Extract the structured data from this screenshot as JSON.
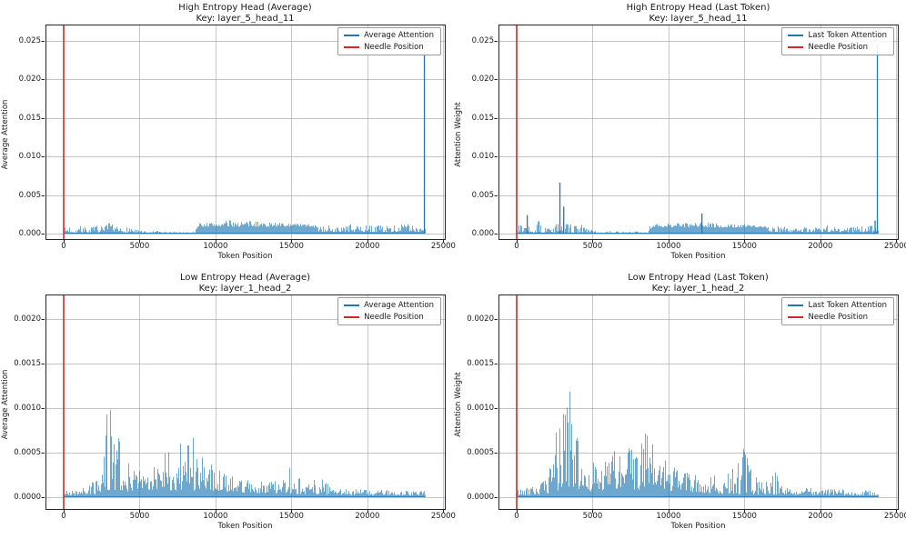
{
  "figure": {
    "background": "#ffffff",
    "grid_color": "#b0b0b0",
    "spine_color": "#262626",
    "text_color": "#1a1a1a",
    "series_blue": "#1f77b4",
    "needle_red": "#d62728"
  },
  "chart_data": [
    {
      "type": "line",
      "title": "High Entropy Head (Average)",
      "subtitle": "Key: layer_5_head_11",
      "xlabel": "Token Position",
      "ylabel": "Average Attention",
      "legend": [
        {
          "label": "Average Attention",
          "color": "#1f77b4"
        },
        {
          "label": "Needle Position",
          "color": "#d62728"
        }
      ],
      "xlim": [
        -1195,
        25095
      ],
      "ylim": [
        -0.0007,
        0.0271
      ],
      "xticks": [
        0,
        5000,
        10000,
        15000,
        20000,
        25000
      ],
      "xtick_labels": [
        "0",
        "5000",
        "10000",
        "15000",
        "20000",
        "25000"
      ],
      "yticks": [
        0,
        0.005,
        0.01,
        0.015,
        0.02,
        0.025
      ],
      "ytick_labels": [
        "0.000",
        "0.005",
        "0.010",
        "0.015",
        "0.020",
        "0.025"
      ],
      "needle_x": 0,
      "line_color": "#1f77b4",
      "needle_color": "#d62728",
      "seed": 7,
      "x_max_data": 23800,
      "envelope": [
        [
          0,
          0.0007
        ],
        [
          300,
          0.0012
        ],
        [
          700,
          0.0009
        ],
        [
          1100,
          0.0011
        ],
        [
          1600,
          0.0008
        ],
        [
          2100,
          0.0011
        ],
        [
          2600,
          0.0009
        ],
        [
          3000,
          0.0014
        ],
        [
          3400,
          0.0009
        ],
        [
          3900,
          0.0008
        ],
        [
          4300,
          0.0011
        ],
        [
          4700,
          0.0007
        ],
        [
          5000,
          0.0004
        ],
        [
          5600,
          0.00025
        ],
        [
          6300,
          0.0004
        ],
        [
          7000,
          0.00022
        ],
        [
          7700,
          0.00035
        ],
        [
          8300,
          0.0002
        ],
        [
          8600,
          0.0003
        ],
        [
          8700,
          0.0013
        ],
        [
          9500,
          0.0015
        ],
        [
          10300,
          0.0016
        ],
        [
          11100,
          0.0018
        ],
        [
          11900,
          0.0017
        ],
        [
          12700,
          0.0016
        ],
        [
          13500,
          0.0015
        ],
        [
          14300,
          0.0014
        ],
        [
          15100,
          0.0013
        ],
        [
          15900,
          0.0013
        ],
        [
          16500,
          0.0012
        ],
        [
          16900,
          0.0009
        ],
        [
          17400,
          0.0012
        ],
        [
          17900,
          0.0008
        ],
        [
          18400,
          0.0011
        ],
        [
          18900,
          0.0013
        ],
        [
          19400,
          0.0009
        ],
        [
          19900,
          0.0012
        ],
        [
          20400,
          0.001
        ],
        [
          20900,
          0.0013
        ],
        [
          21400,
          0.0009
        ],
        [
          21900,
          0.0012
        ],
        [
          22400,
          0.0014
        ],
        [
          22900,
          0.0011
        ],
        [
          23400,
          0.0013
        ],
        [
          23800,
          0.0011
        ]
      ],
      "floor": [
        [
          0,
          0.0001
        ],
        [
          4900,
          0.0001
        ],
        [
          5100,
          4e-05
        ],
        [
          8600,
          4e-05
        ],
        [
          8800,
          0.0009
        ],
        [
          16400,
          0.0009
        ],
        [
          16800,
          0.00022
        ],
        [
          23800,
          0.00022
        ]
      ],
      "spikes": [
        [
          23750,
          0.0235
        ]
      ]
    },
    {
      "type": "line",
      "title": "High Entropy Head (Last Token)",
      "subtitle": "Key: layer_5_head_11",
      "xlabel": "Token Position",
      "ylabel": "Attention Weight",
      "legend": [
        {
          "label": "Last Token Attention",
          "color": "#1f77b4"
        },
        {
          "label": "Needle Position",
          "color": "#d62728"
        }
      ],
      "xlim": [
        -1195,
        25095
      ],
      "ylim": [
        -0.0007,
        0.0271
      ],
      "xticks": [
        0,
        5000,
        10000,
        15000,
        20000,
        25000
      ],
      "xtick_labels": [
        "0",
        "5000",
        "10000",
        "15000",
        "20000",
        "25000"
      ],
      "yticks": [
        0,
        0.005,
        0.01,
        0.015,
        0.02,
        0.025
      ],
      "ytick_labels": [
        "0.000",
        "0.005",
        "0.010",
        "0.015",
        "0.020",
        "0.025"
      ],
      "needle_x": 0,
      "line_color": "#1f77b4",
      "needle_color": "#d62728",
      "seed": 13,
      "x_max_data": 23800,
      "envelope": [
        [
          0,
          0.001
        ],
        [
          400,
          0.0016
        ],
        [
          800,
          0.001
        ],
        [
          1200,
          0.0014
        ],
        [
          1700,
          0.0009
        ],
        [
          2200,
          0.0012
        ],
        [
          2700,
          0.0014
        ],
        [
          3000,
          0.002
        ],
        [
          3300,
          0.0015
        ],
        [
          3700,
          0.001
        ],
        [
          4200,
          0.0012
        ],
        [
          4700,
          0.0008
        ],
        [
          5000,
          0.0004
        ],
        [
          5600,
          0.00025
        ],
        [
          6300,
          0.0004
        ],
        [
          7000,
          0.0002
        ],
        [
          7700,
          0.00035
        ],
        [
          8300,
          0.0002
        ],
        [
          8600,
          0.0003
        ],
        [
          8800,
          0.0012
        ],
        [
          9600,
          0.0013
        ],
        [
          10400,
          0.0014
        ],
        [
          11200,
          0.0014
        ],
        [
          12000,
          0.0015
        ],
        [
          12800,
          0.0014
        ],
        [
          13600,
          0.0013
        ],
        [
          14400,
          0.0012
        ],
        [
          15200,
          0.0012
        ],
        [
          16000,
          0.0011
        ],
        [
          16400,
          0.0011
        ],
        [
          16800,
          0.0008
        ],
        [
          17400,
          0.001
        ],
        [
          18000,
          0.0008
        ],
        [
          18600,
          0.001
        ],
        [
          19200,
          0.0008
        ],
        [
          19800,
          0.0009
        ],
        [
          20400,
          0.0011
        ],
        [
          21000,
          0.0008
        ],
        [
          21600,
          0.001
        ],
        [
          22200,
          0.0012
        ],
        [
          22800,
          0.0009
        ],
        [
          23400,
          0.0011
        ],
        [
          23800,
          0.0014
        ]
      ],
      "floor": [
        [
          0,
          0.00012
        ],
        [
          4900,
          0.00012
        ],
        [
          5100,
          3e-05
        ],
        [
          8700,
          3e-05
        ],
        [
          8900,
          0.0008
        ],
        [
          16300,
          0.0008
        ],
        [
          16700,
          0.0002
        ],
        [
          23800,
          0.0002
        ]
      ],
      "spikes": [
        [
          700,
          0.0024
        ],
        [
          1450,
          0.0016
        ],
        [
          2850,
          0.0066
        ],
        [
          3100,
          0.0035
        ],
        [
          12200,
          0.0026
        ],
        [
          23600,
          0.0017
        ],
        [
          23750,
          0.0245
        ]
      ]
    },
    {
      "type": "line",
      "title": "Low Entropy Head (Average)",
      "subtitle": "Key: layer_1_head_2",
      "xlabel": "Token Position",
      "ylabel": "Average Attention",
      "legend": [
        {
          "label": "Average Attention",
          "color": "#1f77b4"
        },
        {
          "label": "Needle Position",
          "color": "#d62728"
        }
      ],
      "xlim": [
        -1195,
        25095
      ],
      "ylim": [
        -0.000133,
        0.00228
      ],
      "xticks": [
        0,
        5000,
        10000,
        15000,
        20000,
        25000
      ],
      "xtick_labels": [
        "0",
        "5000",
        "10000",
        "15000",
        "20000",
        "25000"
      ],
      "yticks": [
        0,
        0.0005,
        0.001,
        0.0015,
        0.002
      ],
      "ytick_labels": [
        "0.0000",
        "0.0005",
        "0.0010",
        "0.0015",
        "0.0020"
      ],
      "needle_x": 0,
      "line_color": "#1f77b4",
      "needle_color": "#d62728",
      "seed": 21,
      "x_max_data": 23800,
      "envelope": [
        [
          0,
          8e-05
        ],
        [
          900,
          0.0001
        ],
        [
          1600,
          0.00013
        ],
        [
          2000,
          0.0002
        ],
        [
          2400,
          0.00045
        ],
        [
          2700,
          0.0008
        ],
        [
          2900,
          0.0012
        ],
        [
          3000,
          0.0015
        ],
        [
          3080,
          0.00215
        ],
        [
          3170,
          0.0017
        ],
        [
          3270,
          0.0011
        ],
        [
          3380,
          0.0016
        ],
        [
          3500,
          0.001
        ],
        [
          3650,
          0.0008
        ],
        [
          3800,
          0.00065
        ],
        [
          4000,
          0.00055
        ],
        [
          4300,
          0.00045
        ],
        [
          4600,
          0.0003
        ],
        [
          5000,
          0.00035
        ],
        [
          5400,
          0.0003
        ],
        [
          5800,
          0.00035
        ],
        [
          6200,
          0.00045
        ],
        [
          6600,
          0.00055
        ],
        [
          7000,
          0.00065
        ],
        [
          7300,
          0.0005
        ],
        [
          7600,
          0.0007
        ],
        [
          7900,
          0.00055
        ],
        [
          8200,
          0.0006
        ],
        [
          8500,
          0.00075
        ],
        [
          8800,
          0.0006
        ],
        [
          9100,
          0.0005
        ],
        [
          9400,
          0.00055
        ],
        [
          9700,
          0.00045
        ],
        [
          10000,
          0.00035
        ],
        [
          10500,
          0.0003
        ],
        [
          11000,
          0.00025
        ],
        [
          11500,
          0.0002
        ],
        [
          12000,
          0.00022
        ],
        [
          12500,
          0.00018
        ],
        [
          13000,
          0.0002
        ],
        [
          13600,
          0.00018
        ],
        [
          14000,
          0.00025
        ],
        [
          14400,
          0.0003
        ],
        [
          14800,
          0.00035
        ],
        [
          15200,
          0.0003
        ],
        [
          15600,
          0.0002
        ],
        [
          16000,
          0.00015
        ],
        [
          16500,
          0.0002
        ],
        [
          17000,
          0.00025
        ],
        [
          17500,
          0.00012
        ],
        [
          18000,
          0.0001
        ],
        [
          19000,
          0.00011
        ],
        [
          20000,
          8e-05
        ],
        [
          21000,
          9e-05
        ],
        [
          22000,
          7e-05
        ],
        [
          23000,
          8e-05
        ],
        [
          23800,
          7e-05
        ]
      ],
      "floor": [
        [
          0,
          2e-05
        ],
        [
          2200,
          3e-05
        ],
        [
          2900,
          8e-05
        ],
        [
          3600,
          8e-05
        ],
        [
          4200,
          6e-05
        ],
        [
          6000,
          8e-05
        ],
        [
          10000,
          7e-05
        ],
        [
          13000,
          4e-05
        ],
        [
          16000,
          3e-05
        ],
        [
          23800,
          2e-05
        ]
      ],
      "spikes": []
    },
    {
      "type": "line",
      "title": "Low Entropy Head (Last Token)",
      "subtitle": "Key: layer_1_head_2",
      "xlabel": "Token Position",
      "ylabel": "Attention Weight",
      "legend": [
        {
          "label": "Last Token Attention",
          "color": "#1f77b4"
        },
        {
          "label": "Needle Position",
          "color": "#d62728"
        }
      ],
      "xlim": [
        -1195,
        25095
      ],
      "ylim": [
        -0.000133,
        0.00228
      ],
      "xticks": [
        0,
        5000,
        10000,
        15000,
        20000,
        25000
      ],
      "xtick_labels": [
        "0",
        "5000",
        "10000",
        "15000",
        "20000",
        "25000"
      ],
      "yticks": [
        0,
        0.0005,
        0.001,
        0.0015,
        0.002
      ],
      "ytick_labels": [
        "0.0000",
        "0.0005",
        "0.0010",
        "0.0015",
        "0.0020"
      ],
      "needle_x": 0,
      "line_color": "#1f77b4",
      "needle_color": "#d62728",
      "seed": 42,
      "x_max_data": 23800,
      "envelope": [
        [
          0,
          0.0001
        ],
        [
          900,
          0.00012
        ],
        [
          1600,
          0.00016
        ],
        [
          2000,
          0.00025
        ],
        [
          2300,
          0.0004
        ],
        [
          2550,
          0.0009
        ],
        [
          2750,
          0.0007
        ],
        [
          2950,
          0.0013
        ],
        [
          3050,
          0.0016
        ],
        [
          3120,
          0.0021
        ],
        [
          3220,
          0.0016
        ],
        [
          3320,
          0.0011
        ],
        [
          3420,
          0.0014
        ],
        [
          3550,
          0.001
        ],
        [
          3700,
          0.00085
        ],
        [
          3900,
          0.0007
        ],
        [
          4100,
          0.0006
        ],
        [
          4400,
          0.0005
        ],
        [
          4700,
          0.0004
        ],
        [
          5000,
          0.00045
        ],
        [
          5400,
          0.00035
        ],
        [
          5800,
          0.0004
        ],
        [
          6200,
          0.0005
        ],
        [
          6600,
          0.0006
        ],
        [
          7000,
          0.0007
        ],
        [
          7300,
          0.00055
        ],
        [
          7600,
          0.00075
        ],
        [
          7900,
          0.0006
        ],
        [
          8200,
          0.00065
        ],
        [
          8500,
          0.0008
        ],
        [
          8800,
          0.00065
        ],
        [
          9100,
          0.00055
        ],
        [
          9400,
          0.0006
        ],
        [
          9700,
          0.0005
        ],
        [
          10000,
          0.0004
        ],
        [
          10500,
          0.00035
        ],
        [
          11000,
          0.0003
        ],
        [
          11500,
          0.00025
        ],
        [
          12000,
          0.00028
        ],
        [
          12500,
          0.0002
        ],
        [
          13000,
          0.00025
        ],
        [
          13600,
          0.0002
        ],
        [
          14000,
          0.0003
        ],
        [
          14400,
          0.00045
        ],
        [
          14800,
          0.0006
        ],
        [
          15200,
          0.00045
        ],
        [
          15600,
          0.00025
        ],
        [
          16000,
          0.0002
        ],
        [
          16500,
          0.00025
        ],
        [
          17000,
          0.0003
        ],
        [
          17500,
          0.00013
        ],
        [
          18000,
          0.0001
        ],
        [
          19000,
          0.00012
        ],
        [
          20000,
          8e-05
        ],
        [
          21000,
          0.0001
        ],
        [
          22000,
          7e-05
        ],
        [
          23000,
          8e-05
        ],
        [
          23800,
          8e-05
        ]
      ],
      "floor": [
        [
          0,
          2e-05
        ],
        [
          2200,
          3e-05
        ],
        [
          2900,
          8e-05
        ],
        [
          3600,
          8e-05
        ],
        [
          4200,
          6e-05
        ],
        [
          6000,
          8e-05
        ],
        [
          10000,
          7e-05
        ],
        [
          13000,
          4e-05
        ],
        [
          16000,
          3e-05
        ],
        [
          23800,
          2e-05
        ]
      ],
      "spikes": []
    }
  ]
}
